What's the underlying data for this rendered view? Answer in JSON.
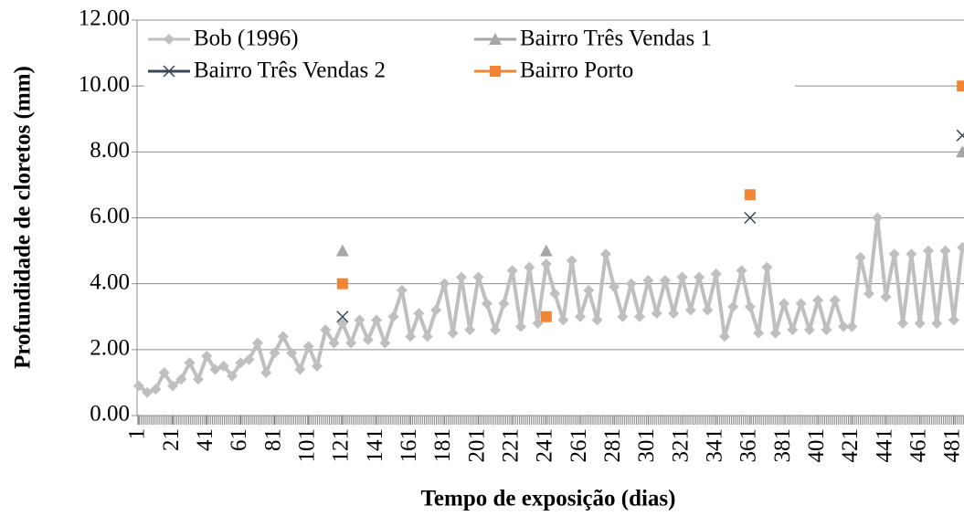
{
  "chart_data": {
    "type": "line",
    "xlabel": "Tempo de exposição (dias)",
    "ylabel": "Profundidade de cloretos (mm)",
    "xlim": [
      0,
      487
    ],
    "xticks": [
      1,
      21,
      41,
      61,
      81,
      101,
      121,
      141,
      161,
      181,
      201,
      221,
      241,
      261,
      281,
      301,
      321,
      341,
      361,
      381,
      401,
      421,
      441,
      461,
      481
    ],
    "ylim": [
      0,
      12
    ],
    "yticks": [
      {
        "value": 0,
        "label": "0.00"
      },
      {
        "value": 2,
        "label": "2.00"
      },
      {
        "value": 4,
        "label": "4.00"
      },
      {
        "value": 6,
        "label": "6.00"
      },
      {
        "value": 8,
        "label": "8.00"
      },
      {
        "value": 10,
        "label": "10.00"
      },
      {
        "value": 12,
        "label": "12.00"
      }
    ],
    "grid": true,
    "legend": "upper left",
    "series": [
      {
        "name": "Bob (1996)",
        "color": "#bfbfbf",
        "marker": "diamond",
        "line": true,
        "x": [
          1,
          6,
          11,
          16,
          21,
          26,
          31,
          36,
          41,
          46,
          51,
          56,
          61,
          66,
          71,
          76,
          81,
          86,
          91,
          96,
          101,
          106,
          111,
          116,
          121,
          126,
          131,
          136,
          141,
          146,
          151,
          156,
          161,
          166,
          171,
          176,
          181,
          186,
          191,
          196,
          201,
          206,
          211,
          216,
          221,
          226,
          231,
          236,
          241,
          246,
          251,
          256,
          261,
          266,
          271,
          276,
          281,
          286,
          291,
          296,
          301,
          306,
          311,
          316,
          321,
          326,
          331,
          336,
          341,
          346,
          351,
          356,
          361,
          366,
          371,
          376,
          381,
          386,
          391,
          396,
          401,
          406,
          411,
          416,
          421,
          426,
          431,
          436,
          441,
          446,
          451,
          456,
          461,
          466,
          471,
          476,
          481,
          486
        ],
        "values": [
          0.9,
          0.7,
          0.8,
          1.3,
          0.9,
          1.1,
          1.6,
          1.1,
          1.8,
          1.4,
          1.5,
          1.2,
          1.6,
          1.7,
          2.2,
          1.3,
          1.9,
          2.4,
          1.9,
          1.4,
          2.1,
          1.5,
          2.6,
          2.2,
          2.8,
          2.2,
          2.9,
          2.3,
          2.9,
          2.2,
          3.0,
          3.8,
          2.4,
          3.1,
          2.4,
          3.2,
          4.0,
          2.5,
          4.2,
          2.6,
          4.2,
          3.4,
          2.6,
          3.4,
          4.4,
          2.7,
          4.5,
          2.8,
          4.6,
          3.7,
          2.9,
          4.7,
          3.0,
          3.8,
          2.9,
          4.9,
          3.9,
          3.0,
          4.0,
          3.0,
          4.1,
          3.1,
          4.1,
          3.1,
          4.2,
          3.2,
          4.2,
          3.2,
          4.3,
          2.4,
          3.3,
          4.4,
          3.3,
          2.5,
          4.5,
          2.5,
          3.4,
          2.6,
          3.4,
          2.6,
          3.5,
          2.6,
          3.5,
          2.7,
          2.7,
          4.8,
          3.7,
          6.0,
          3.6,
          4.9,
          2.8,
          4.9,
          2.8,
          5.0,
          2.8,
          5.0,
          2.9,
          5.1
        ]
      },
      {
        "name": "Bairro Três Vendas 1",
        "color": "#a6a6a6",
        "marker": "triangle",
        "line": false,
        "x": [
          121,
          241,
          486
        ],
        "values": [
          5,
          5,
          8
        ]
      },
      {
        "name": "Bairro Três Vendas 2",
        "color": "#3a4556",
        "marker": "cross",
        "line": false,
        "x": [
          121,
          361,
          486
        ],
        "values": [
          3,
          6,
          8.5
        ]
      },
      {
        "name": "Bairro Porto",
        "color": "#f08536",
        "marker": "square",
        "line": false,
        "x": [
          121,
          241,
          361,
          486
        ],
        "values": [
          4,
          3,
          6.7,
          10
        ]
      }
    ]
  }
}
